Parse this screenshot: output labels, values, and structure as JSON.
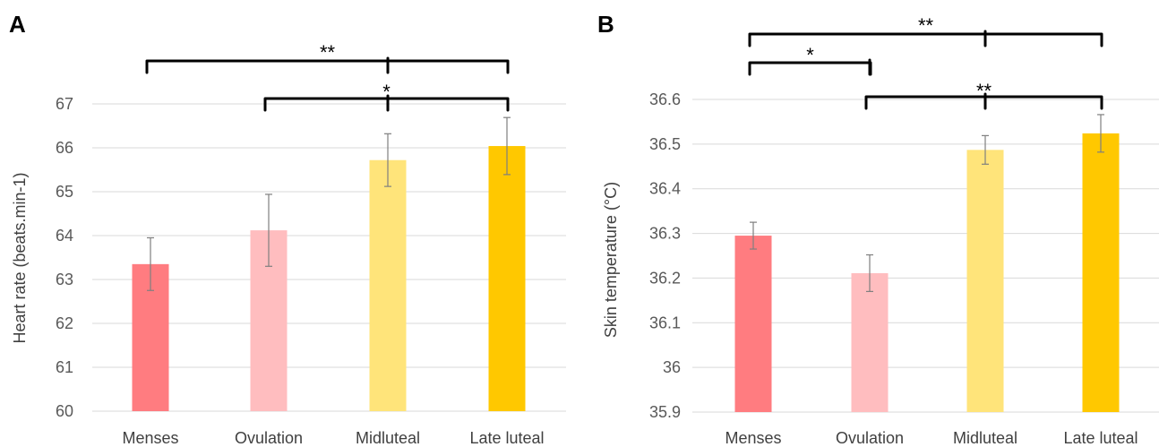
{
  "chart_data": [
    {
      "panel": "A",
      "type": "bar",
      "title": "",
      "xlabel": "",
      "ylabel": "Heart rate (beats.min-1)",
      "ylim": [
        60,
        67
      ],
      "yticks": [
        60,
        61,
        62,
        63,
        64,
        65,
        66,
        67
      ],
      "grid": true,
      "legend": "none",
      "categories": [
        "Menses",
        "Ovulation",
        "Midluteal",
        "Late luteal"
      ],
      "values": [
        63.35,
        64.12,
        65.72,
        66.04
      ],
      "errors": [
        0.6,
        0.82,
        0.6,
        0.65
      ],
      "colors": [
        "#ff7c80",
        "#ffbdbf",
        "#ffe47a",
        "#ffc800"
      ],
      "significance": [
        {
          "label": "**",
          "from": 0,
          "to": 3,
          "mid": 2
        },
        {
          "label": "*",
          "from": 1,
          "to": 3,
          "mid": 2
        }
      ]
    },
    {
      "panel": "B",
      "type": "bar",
      "title": "",
      "xlabel": "",
      "ylabel": "Skin temperature (°C)",
      "ylim": [
        35.9,
        36.6
      ],
      "yticks": [
        "35.9",
        "36",
        "36.1",
        "36.2",
        "36.3",
        "36.4",
        "36.5",
        "36.6"
      ],
      "grid": true,
      "legend": "none",
      "categories": [
        "Menses",
        "Ovulation",
        "Midluteal",
        "Late luteal"
      ],
      "values": [
        36.295,
        36.211,
        36.487,
        36.524
      ],
      "errors": [
        0.03,
        0.041,
        0.032,
        0.042
      ],
      "colors": [
        "#ff7c80",
        "#ffbdbf",
        "#ffe47a",
        "#ffc800"
      ],
      "significance": [
        {
          "label": "**",
          "from": 0,
          "to": 3,
          "mid": 2
        },
        {
          "label": "*",
          "from": 0,
          "to": 1,
          "mid": 1
        },
        {
          "label": "**",
          "from": 1,
          "to": 3,
          "mid": 2
        }
      ]
    }
  ]
}
